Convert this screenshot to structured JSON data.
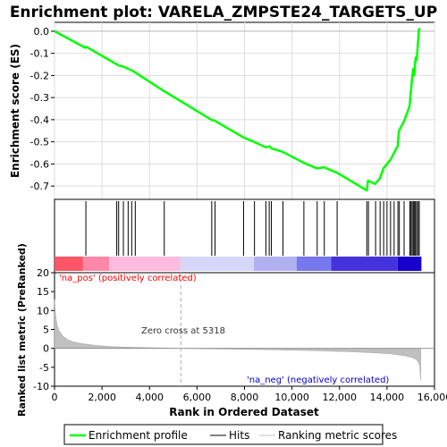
{
  "chart_data": {
    "type": "line",
    "title": "Enrichment plot: VARELA_ZMPSTE24_TARGETS_UP",
    "xlabel": "Rank in Ordered Dataset",
    "xlim": [
      0,
      16000
    ],
    "x_ticks": [
      "0",
      "2,000",
      "4,000",
      "6,000",
      "8,000",
      "10,000",
      "12,000",
      "14,000",
      "16,000"
    ],
    "x_tick_values": [
      0,
      2000,
      4000,
      6000,
      8000,
      10000,
      12000,
      14000,
      16000
    ],
    "es_panel": {
      "ylabel": "Enrichment score (ES)",
      "ylim": [
        -0.76,
        0.04
      ],
      "y_ticks": [
        "0.0",
        "-0.1",
        "-0.2",
        "-0.3",
        "-0.4",
        "-0.5",
        "-0.6",
        "-0.7"
      ],
      "y_tick_values": [
        0.0,
        -0.1,
        -0.2,
        -0.3,
        -0.4,
        -0.5,
        -0.6,
        -0.7
      ],
      "grid": true,
      "series": [
        {
          "name": "Enrichment profile",
          "color": "#00ff00",
          "x": [
            0,
            1300,
            1330,
            2620,
            2700,
            2900,
            3100,
            3300,
            4600,
            6600,
            6750,
            7950,
            8400,
            8900,
            9050,
            9150,
            9600,
            10500,
            11050,
            11350,
            11900,
            13150,
            13200,
            13500,
            13700,
            13850,
            14000,
            14150,
            14300,
            14450,
            14500,
            14700,
            14950,
            15000,
            15050,
            15100,
            15150,
            15200,
            15250,
            15300,
            15350,
            15400
          ],
          "y": [
            0.0,
            -0.075,
            -0.07,
            -0.15,
            -0.155,
            -0.16,
            -0.17,
            -0.18,
            -0.27,
            -0.4,
            -0.405,
            -0.48,
            -0.5,
            -0.525,
            -0.52,
            -0.53,
            -0.545,
            -0.595,
            -0.62,
            -0.615,
            -0.64,
            -0.72,
            -0.675,
            -0.69,
            -0.665,
            -0.62,
            -0.6,
            -0.58,
            -0.55,
            -0.52,
            -0.45,
            -0.41,
            -0.34,
            -0.28,
            -0.22,
            -0.17,
            -0.2,
            -0.12,
            -0.13,
            -0.06,
            0.01,
            0.005
          ]
        }
      ]
    },
    "hits_panel": {
      "name": "Hits",
      "hit_ranks": [
        1320,
        2620,
        2700,
        2900,
        3100,
        3250,
        3400,
        4620,
        6620,
        6760,
        7960,
        8420,
        8900,
        9040,
        9130,
        9620,
        10500,
        11060,
        11360,
        11900,
        13150,
        13220,
        13520,
        13710,
        13860,
        14000,
        14150,
        14300,
        14460,
        14520,
        14720,
        14960,
        15010,
        15060,
        15110,
        15160,
        15200,
        15250,
        15310,
        15360
      ]
    },
    "color_bar": {
      "segments": [
        {
          "from": 0,
          "to": 1200,
          "color": "#ff5566"
        },
        {
          "from": 1200,
          "to": 2300,
          "color": "#ff88aa"
        },
        {
          "from": 2300,
          "to": 5300,
          "color": "#ffbbdd"
        },
        {
          "from": 5300,
          "to": 8400,
          "color": "#d6d6f8"
        },
        {
          "from": 8400,
          "to": 10200,
          "color": "#b0b0f0"
        },
        {
          "from": 10200,
          "to": 11650,
          "color": "#7777ee"
        },
        {
          "from": 11650,
          "to": 14450,
          "color": "#4433dd"
        },
        {
          "from": 14450,
          "to": 15450,
          "color": "#1a00cc"
        }
      ]
    },
    "metric_panel": {
      "name": "Ranking metric scores",
      "color": "#c0c0c0",
      "ylabel": "Ranked list metric (PreRanked)",
      "ylim": [
        -10,
        20
      ],
      "y_ticks": [
        "20",
        "15",
        "10",
        "5",
        "0",
        "-5",
        "-10"
      ],
      "y_tick_values": [
        20,
        15,
        10,
        5,
        0,
        -5,
        -10
      ],
      "x": [
        0,
        40,
        100,
        200,
        350,
        550,
        800,
        1200,
        1700,
        2300,
        3200,
        4500,
        5318,
        7000,
        9000,
        11000,
        12500,
        13500,
        14200,
        14700,
        15000,
        15200,
        15300,
        15380,
        15420
      ],
      "y": [
        13.0,
        9.0,
        6.2,
        4.5,
        3.2,
        2.3,
        1.7,
        1.2,
        0.8,
        0.5,
        0.3,
        0.12,
        0.0,
        -0.15,
        -0.35,
        -0.6,
        -0.9,
        -1.2,
        -1.5,
        -1.9,
        -2.3,
        -2.8,
        -3.4,
        -4.5,
        -8.5
      ],
      "zero_cross": 5318,
      "zero_cross_label": "Zero cross at 5318",
      "pos_label": "'na_pos' (positively correlated)",
      "neg_label": "'na_neg' (negatively correlated)",
      "pos_label_color": "#ff0000",
      "neg_label_color": "#0000cc"
    },
    "legend": {
      "placement": "bottom",
      "items": [
        {
          "label": "Enrichment profile",
          "color": "#00ff00"
        },
        {
          "label": "Hits",
          "color": "#000000"
        },
        {
          "label": "Ranking metric scores",
          "color": "#c0c0c0"
        }
      ]
    }
  }
}
